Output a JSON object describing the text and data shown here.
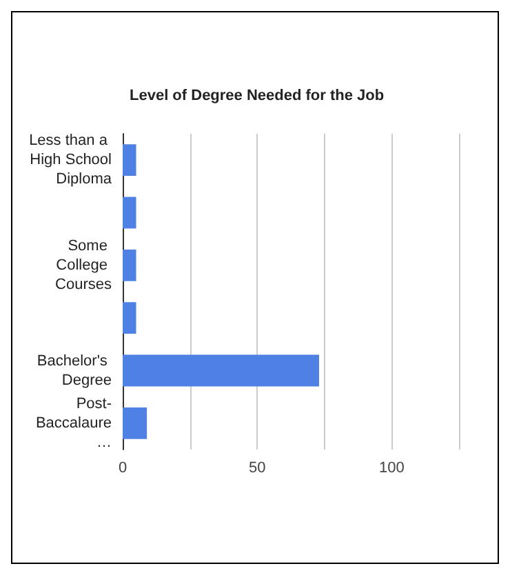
{
  "chart_data": {
    "type": "bar",
    "orientation": "horizontal",
    "title": "Level of Degree Needed for the Job",
    "categories": [
      "Less than a High School Diploma",
      null,
      "Some College Courses",
      null,
      "Bachelor's Degree",
      "Post-Baccalaure…"
    ],
    "values": [
      5,
      5,
      5,
      5,
      73,
      9
    ],
    "color": "#4f81e4",
    "xlim": [
      0,
      125
    ],
    "xticks": [
      0,
      {
        "value": 25,
        "label": null
      },
      50,
      {
        "value": 75,
        "label": null
      },
      100,
      {
        "value": 125,
        "label": null
      }
    ],
    "grid": "x"
  }
}
